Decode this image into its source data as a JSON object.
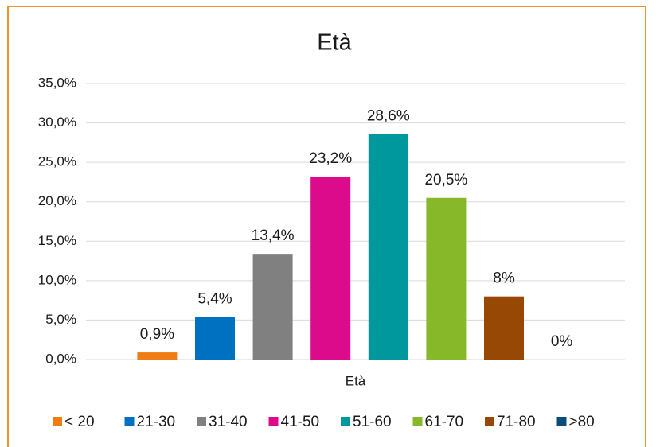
{
  "chart_data": {
    "type": "bar",
    "title": "Età",
    "categories": [
      "Età"
    ],
    "series": [
      {
        "name": "< 20",
        "color": "#f07c14",
        "values": [
          0.9
        ],
        "value_labels": [
          "0,9%"
        ]
      },
      {
        "name": "21-30",
        "color": "#0070c0",
        "values": [
          5.4
        ],
        "value_labels": [
          "5,4%"
        ]
      },
      {
        "name": "31-40",
        "color": "#808080",
        "values": [
          13.4
        ],
        "value_labels": [
          "13,4%"
        ]
      },
      {
        "name": "41-50",
        "color": "#db0b8c",
        "values": [
          23.2
        ],
        "value_labels": [
          "23,2%"
        ]
      },
      {
        "name": "51-60",
        "color": "#00989c",
        "values": [
          28.6
        ],
        "value_labels": [
          "28,6%"
        ]
      },
      {
        "name": "61-70",
        "color": "#86b82a",
        "values": [
          20.5
        ],
        "value_labels": [
          "20,5%"
        ]
      },
      {
        "name": "71-80",
        "color": "#974805",
        "values": [
          8
        ],
        "value_labels": [
          "8%"
        ]
      },
      {
        "name": ">80",
        "color": "#0b4b78",
        "values": [
          0
        ],
        "value_labels": [
          "0%"
        ]
      }
    ],
    "ylim": [
      0,
      35
    ],
    "yticks": [
      {
        "value": 0,
        "label": "0,0%"
      },
      {
        "value": 5,
        "label": "5,0%"
      },
      {
        "value": 10,
        "label": "10,0%"
      },
      {
        "value": 15,
        "label": "15,0%"
      },
      {
        "value": 20,
        "label": "20,0%"
      },
      {
        "value": 25,
        "label": "25,0%"
      },
      {
        "value": 30,
        "label": "30,0%"
      },
      {
        "value": 35,
        "label": "35,0%"
      }
    ],
    "grid": true,
    "legend": "bottom"
  }
}
